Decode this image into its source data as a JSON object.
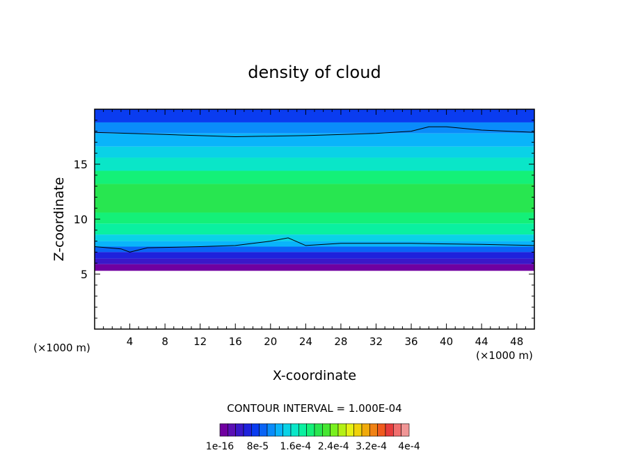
{
  "chart_data": {
    "type": "heatmap",
    "title": "density of cloud",
    "xlabel": "X-coordinate",
    "ylabel": "Z-coordinate",
    "x_unit_left": "(×1000 m)",
    "x_unit_right": "(×1000 m)",
    "xlim": [
      0,
      50
    ],
    "ylim": [
      0,
      20
    ],
    "x_ticks": [
      4,
      8,
      12,
      16,
      20,
      24,
      28,
      32,
      36,
      40,
      44,
      48
    ],
    "x_tick_labels": [
      "4",
      "8",
      "12",
      "16",
      "20",
      "24",
      "28",
      "32",
      "36",
      "40",
      "44",
      "48"
    ],
    "y_ticks": [
      5,
      10,
      15
    ],
    "y_tick_labels": [
      "5",
      "10",
      "15"
    ],
    "contour_interval_text": "CONTOUR INTERVAL = 1.000E-04",
    "colorbar": {
      "min": 1e-16,
      "max": 0.0004,
      "labels": [
        "1e-16",
        "8e-5",
        "1.6e-4",
        "2.4e-4",
        "3.2e-4",
        "4e-4"
      ],
      "colors": [
        "#7000a0",
        "#5a10b4",
        "#3a18c8",
        "#1f22dc",
        "#0a3cf0",
        "#0a64f5",
        "#0a8cfa",
        "#0ab4fa",
        "#0ad2e6",
        "#0ae6c8",
        "#0af0a0",
        "#14f078",
        "#28e650",
        "#46e632",
        "#78f01e",
        "#b4f014",
        "#e6f014",
        "#f0d20a",
        "#f0aa0a",
        "#f08214",
        "#f05a1e",
        "#e63c3c",
        "#f06e6e",
        "#f09696"
      ]
    },
    "field_bands": [
      {
        "z_bottom": 18.8,
        "z_top": 20.0,
        "color": "#0a3cf0"
      },
      {
        "z_bottom": 17.8,
        "z_top": 18.8,
        "color": "#0a8cfa"
      },
      {
        "z_bottom": 16.6,
        "z_top": 17.8,
        "color": "#0ab4fa"
      },
      {
        "z_bottom": 15.6,
        "z_top": 16.6,
        "color": "#0ad2e6"
      },
      {
        "z_bottom": 14.4,
        "z_top": 15.6,
        "color": "#0ae6c8"
      },
      {
        "z_bottom": 13.2,
        "z_top": 14.4,
        "color": "#14f078"
      },
      {
        "z_bottom": 10.6,
        "z_top": 13.2,
        "color": "#28e650"
      },
      {
        "z_bottom": 9.6,
        "z_top": 10.6,
        "color": "#14f078"
      },
      {
        "z_bottom": 8.6,
        "z_top": 9.6,
        "color": "#0af0a0"
      },
      {
        "z_bottom": 8.0,
        "z_top": 8.6,
        "color": "#0ad2e6"
      },
      {
        "z_bottom": 7.5,
        "z_top": 8.0,
        "color": "#0ab4fa"
      },
      {
        "z_bottom": 7.0,
        "z_top": 7.5,
        "color": "#0a64f5"
      },
      {
        "z_bottom": 6.4,
        "z_top": 7.0,
        "color": "#1f22dc"
      },
      {
        "z_bottom": 5.9,
        "z_top": 6.4,
        "color": "#3a18c8"
      },
      {
        "z_bottom": 5.3,
        "z_top": 5.9,
        "color": "#7000a0"
      }
    ],
    "upper_contour_z": [
      [
        0,
        17.9
      ],
      [
        8,
        17.7
      ],
      [
        16,
        17.5
      ],
      [
        24,
        17.6
      ],
      [
        32,
        17.8
      ],
      [
        36,
        18.0
      ],
      [
        38,
        18.4
      ],
      [
        40,
        18.4
      ],
      [
        44,
        18.1
      ],
      [
        50,
        17.9
      ]
    ],
    "lower_contour_z": [
      [
        0,
        7.5
      ],
      [
        3,
        7.3
      ],
      [
        4,
        7.0
      ],
      [
        6,
        7.4
      ],
      [
        12,
        7.5
      ],
      [
        16,
        7.6
      ],
      [
        20,
        8.0
      ],
      [
        22,
        8.3
      ],
      [
        24,
        7.6
      ],
      [
        28,
        7.8
      ],
      [
        36,
        7.8
      ],
      [
        44,
        7.7
      ],
      [
        50,
        7.6
      ]
    ]
  }
}
